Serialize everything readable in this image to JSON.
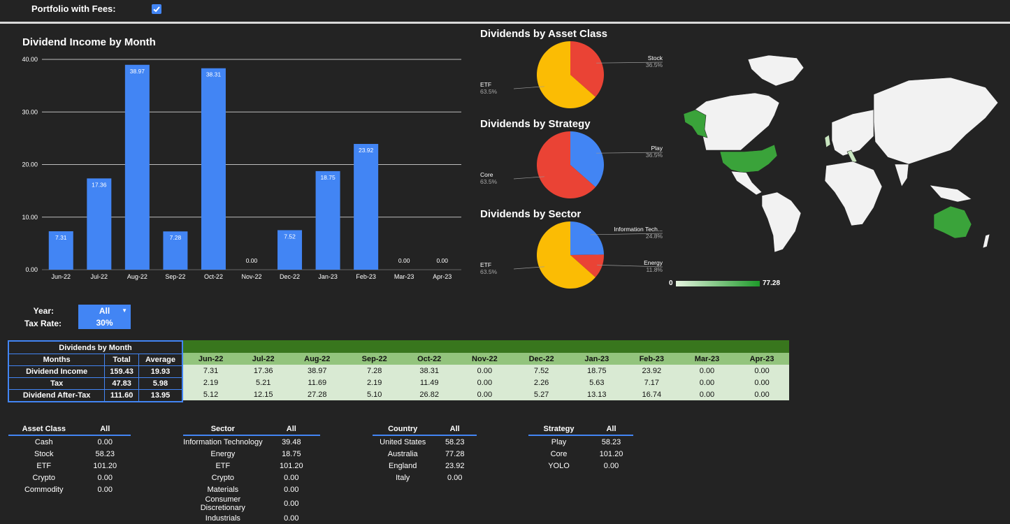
{
  "header": {
    "fees_label": "Portfolio with Fees:",
    "fees_checked": true
  },
  "bar_chart": {
    "title": "Dividend Income by Month"
  },
  "chart_data": [
    {
      "type": "bar",
      "title": "Dividend Income by Month",
      "categories": [
        "Jun-22",
        "Jul-22",
        "Aug-22",
        "Sep-22",
        "Oct-22",
        "Nov-22",
        "Dec-22",
        "Jan-23",
        "Feb-23",
        "Mar-23",
        "Apr-23"
      ],
      "values": [
        7.31,
        17.36,
        38.97,
        7.28,
        38.31,
        0.0,
        7.52,
        18.75,
        23.92,
        0.0,
        0.0
      ],
      "value_labels": [
        "7.31",
        "17.36",
        "38.97",
        "7.28",
        "38.31",
        "0.00",
        "7.52",
        "18.75",
        "23.92",
        "0.00",
        "0.00"
      ],
      "yticks": [
        "0.00",
        "10.00",
        "20.00",
        "30.00",
        "40.00"
      ],
      "ylim": [
        0,
        40
      ],
      "grid": true,
      "color": "#4285f4"
    },
    {
      "type": "pie",
      "title": "Dividends by Asset Class",
      "slices": [
        {
          "label": "Stock",
          "pct": "36.5%",
          "value": 36.5,
          "color": "#ea4335"
        },
        {
          "label": "ETF",
          "pct": "63.5%",
          "value": 63.5,
          "color": "#fbbc04"
        }
      ]
    },
    {
      "type": "pie",
      "title": "Dividends by Strategy",
      "slices": [
        {
          "label": "Play",
          "pct": "36.5%",
          "value": 36.5,
          "color": "#4285f4"
        },
        {
          "label": "Core",
          "pct": "63.5%",
          "value": 63.5,
          "color": "#ea4335"
        }
      ]
    },
    {
      "type": "pie",
      "title": "Dividends by Sector",
      "slices": [
        {
          "label": "Information Tech...",
          "pct": "24.8%",
          "value": 24.8,
          "color": "#4285f4"
        },
        {
          "label": "Energy",
          "pct": "11.8%",
          "value": 11.8,
          "color": "#ea4335"
        },
        {
          "label": "ETF",
          "pct": "63.5%",
          "value": 63.5,
          "color": "#fbbc04"
        }
      ]
    }
  ],
  "map": {
    "legend_min": "0",
    "legend_max": "77.28"
  },
  "controls": {
    "year_label": "Year:",
    "year_value": "All",
    "tax_label": "Tax Rate:",
    "tax_value": "30%"
  },
  "summary": {
    "title": "Dividends by Month",
    "headers": [
      "Months",
      "Total",
      "Average"
    ],
    "rows": [
      [
        "Dividend Income",
        "159.43",
        "19.93"
      ],
      [
        "Tax",
        "47.83",
        "5.98"
      ],
      [
        "Dividend After-Tax",
        "111.60",
        "13.95"
      ]
    ]
  },
  "monthly": {
    "months": [
      "Jun-22",
      "Jul-22",
      "Aug-22",
      "Sep-22",
      "Oct-22",
      "Nov-22",
      "Dec-22",
      "Jan-23",
      "Feb-23",
      "Mar-23",
      "Apr-23"
    ],
    "rows": [
      [
        "7.31",
        "17.36",
        "38.97",
        "7.28",
        "38.31",
        "0.00",
        "7.52",
        "18.75",
        "23.92",
        "0.00",
        "0.00"
      ],
      [
        "2.19",
        "5.21",
        "11.69",
        "2.19",
        "11.49",
        "0.00",
        "2.26",
        "5.63",
        "7.17",
        "0.00",
        "0.00"
      ],
      [
        "5.12",
        "12.15",
        "27.28",
        "5.10",
        "26.82",
        "0.00",
        "5.27",
        "13.13",
        "16.74",
        "0.00",
        "0.00"
      ]
    ]
  },
  "asset_class": {
    "headers": [
      "Asset Class",
      "All"
    ],
    "rows": [
      [
        "Cash",
        "0.00"
      ],
      [
        "Stock",
        "58.23"
      ],
      [
        "ETF",
        "101.20"
      ],
      [
        "Crypto",
        "0.00"
      ],
      [
        "Commodity",
        "0.00"
      ]
    ]
  },
  "sector": {
    "headers": [
      "Sector",
      "All"
    ],
    "rows": [
      [
        "Information Technology",
        "39.48"
      ],
      [
        "Energy",
        "18.75"
      ],
      [
        "ETF",
        "101.20"
      ],
      [
        "Crypto",
        "0.00"
      ],
      [
        "Materials",
        "0.00"
      ],
      [
        "Consumer Discretionary",
        "0.00"
      ],
      [
        "Industrials",
        "0.00"
      ]
    ]
  },
  "country": {
    "headers": [
      "Country",
      "All"
    ],
    "rows": [
      [
        "United States",
        "58.23"
      ],
      [
        "Australia",
        "77.28"
      ],
      [
        "England",
        "23.92"
      ],
      [
        "Italy",
        "0.00"
      ]
    ]
  },
  "strategy": {
    "headers": [
      "Strategy",
      "All"
    ],
    "rows": [
      [
        "Play",
        "58.23"
      ],
      [
        "Core",
        "101.20"
      ],
      [
        "YOLO",
        "0.00"
      ]
    ]
  }
}
